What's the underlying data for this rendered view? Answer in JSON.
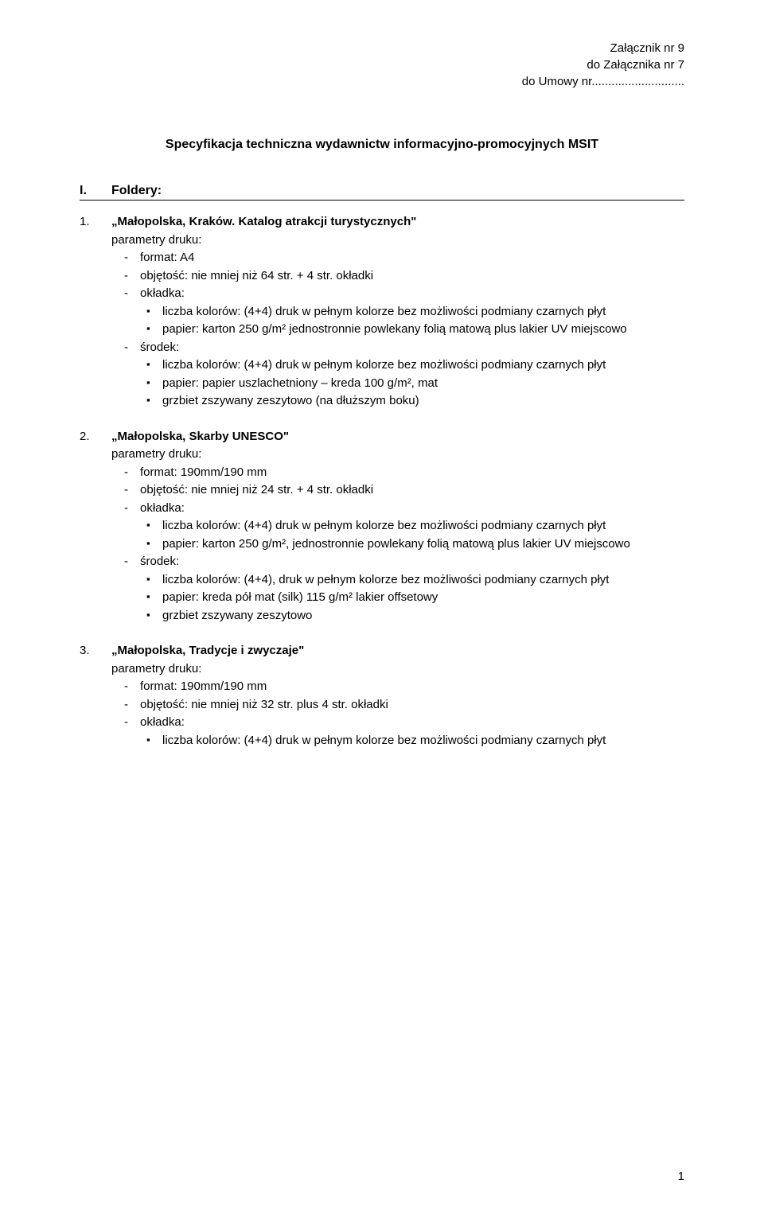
{
  "header": {
    "line1": "Załącznik nr 9",
    "line2": "do Załącznika nr 7",
    "line3": "do Umowy nr............................"
  },
  "title": "Specyfikacja techniczna wydawnictw informacyjno-promocyjnych MSIT",
  "section": {
    "num": "I.",
    "label": "Foldery:"
  },
  "entries": [
    {
      "num": "1.",
      "title": "„Małopolska, Kraków. Katalog atrakcji turystycznych\"",
      "param_label": "parametry druku:",
      "dash": [
        {
          "text": "format: A4"
        },
        {
          "text": "objętość: nie mniej niż 64 str. + 4 str. okładki"
        },
        {
          "text": "okładka:",
          "square": [
            "liczba kolorów: (4+4) druk w pełnym kolorze bez możliwości podmiany czarnych płyt",
            "papier: karton 250 g/m² jednostronnie powlekany folią matową plus lakier UV miejscowo"
          ]
        },
        {
          "text": "środek:",
          "square": [
            "liczba kolorów: (4+4) druk w pełnym kolorze bez możliwości podmiany czarnych płyt",
            "papier: papier uszlachetniony – kreda 100 g/m², mat",
            "grzbiet zszywany zeszytowo (na dłuższym boku)"
          ]
        }
      ]
    },
    {
      "num": "2.",
      "title": "„Małopolska, Skarby UNESCO\"",
      "param_label": "parametry druku:",
      "dash": [
        {
          "text": "format:  190mm/190 mm"
        },
        {
          "text": "objętość: nie mniej niż 24 str. + 4 str. okładki"
        },
        {
          "text": "okładka:",
          "square": [
            "liczba kolorów: (4+4) druk w pełnym kolorze bez możliwości podmiany czarnych płyt",
            "papier: karton 250 g/m², jednostronnie powlekany folią matową plus lakier UV miejscowo"
          ]
        },
        {
          "text": "środek:",
          "square": [
            "liczba kolorów: (4+4), druk w pełnym kolorze bez możliwości podmiany czarnych płyt",
            "papier: kreda pół mat  (silk) 115 g/m² lakier offsetowy",
            "grzbiet zszywany zeszytowo"
          ]
        }
      ]
    },
    {
      "num": "3.",
      "title": "„Małopolska, Tradycje i zwyczaje\"",
      "param_label": "parametry druku:",
      "dash": [
        {
          "text": "format: 190mm/190 mm"
        },
        {
          "text": "objętość: nie mniej niż 32 str. plus 4 str. okładki"
        },
        {
          "text": "okładka:",
          "square": [
            "liczba kolorów: (4+4) druk w pełnym kolorze bez możliwości podmiany czarnych płyt"
          ]
        }
      ]
    }
  ],
  "page_number": "1"
}
